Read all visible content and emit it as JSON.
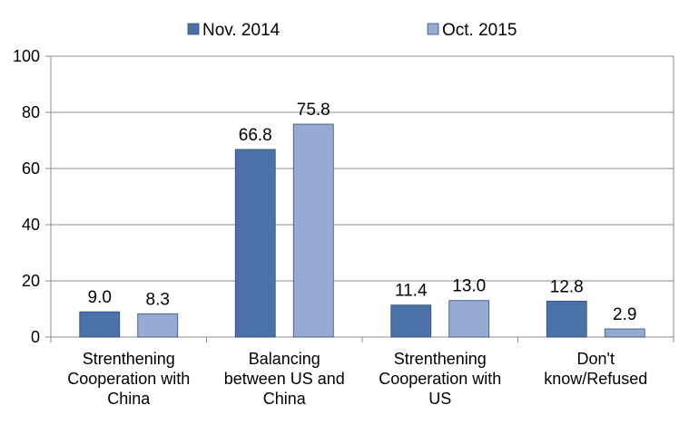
{
  "chart_data": {
    "type": "bar",
    "categories": [
      [
        "Strenthening",
        "Cooperation with",
        "China"
      ],
      [
        "Balancing",
        "between US and",
        "China"
      ],
      [
        "Strenthening",
        "Cooperation with",
        "US"
      ],
      [
        "Don't",
        "know/Refused"
      ]
    ],
    "series": [
      {
        "name": "Nov. 2014",
        "color": "#4a72a8",
        "values": [
          9.0,
          66.8,
          11.4,
          12.8
        ]
      },
      {
        "name": "Oct. 2015",
        "color": "#95abd3",
        "values": [
          8.3,
          75.8,
          13.0,
          2.9
        ]
      }
    ],
    "ylim": [
      0,
      100
    ],
    "yticks": [
      0,
      20,
      40,
      60,
      80,
      100
    ],
    "grid": true,
    "legend_position": "top-center",
    "title": "",
    "xlabel": "",
    "ylabel": ""
  }
}
